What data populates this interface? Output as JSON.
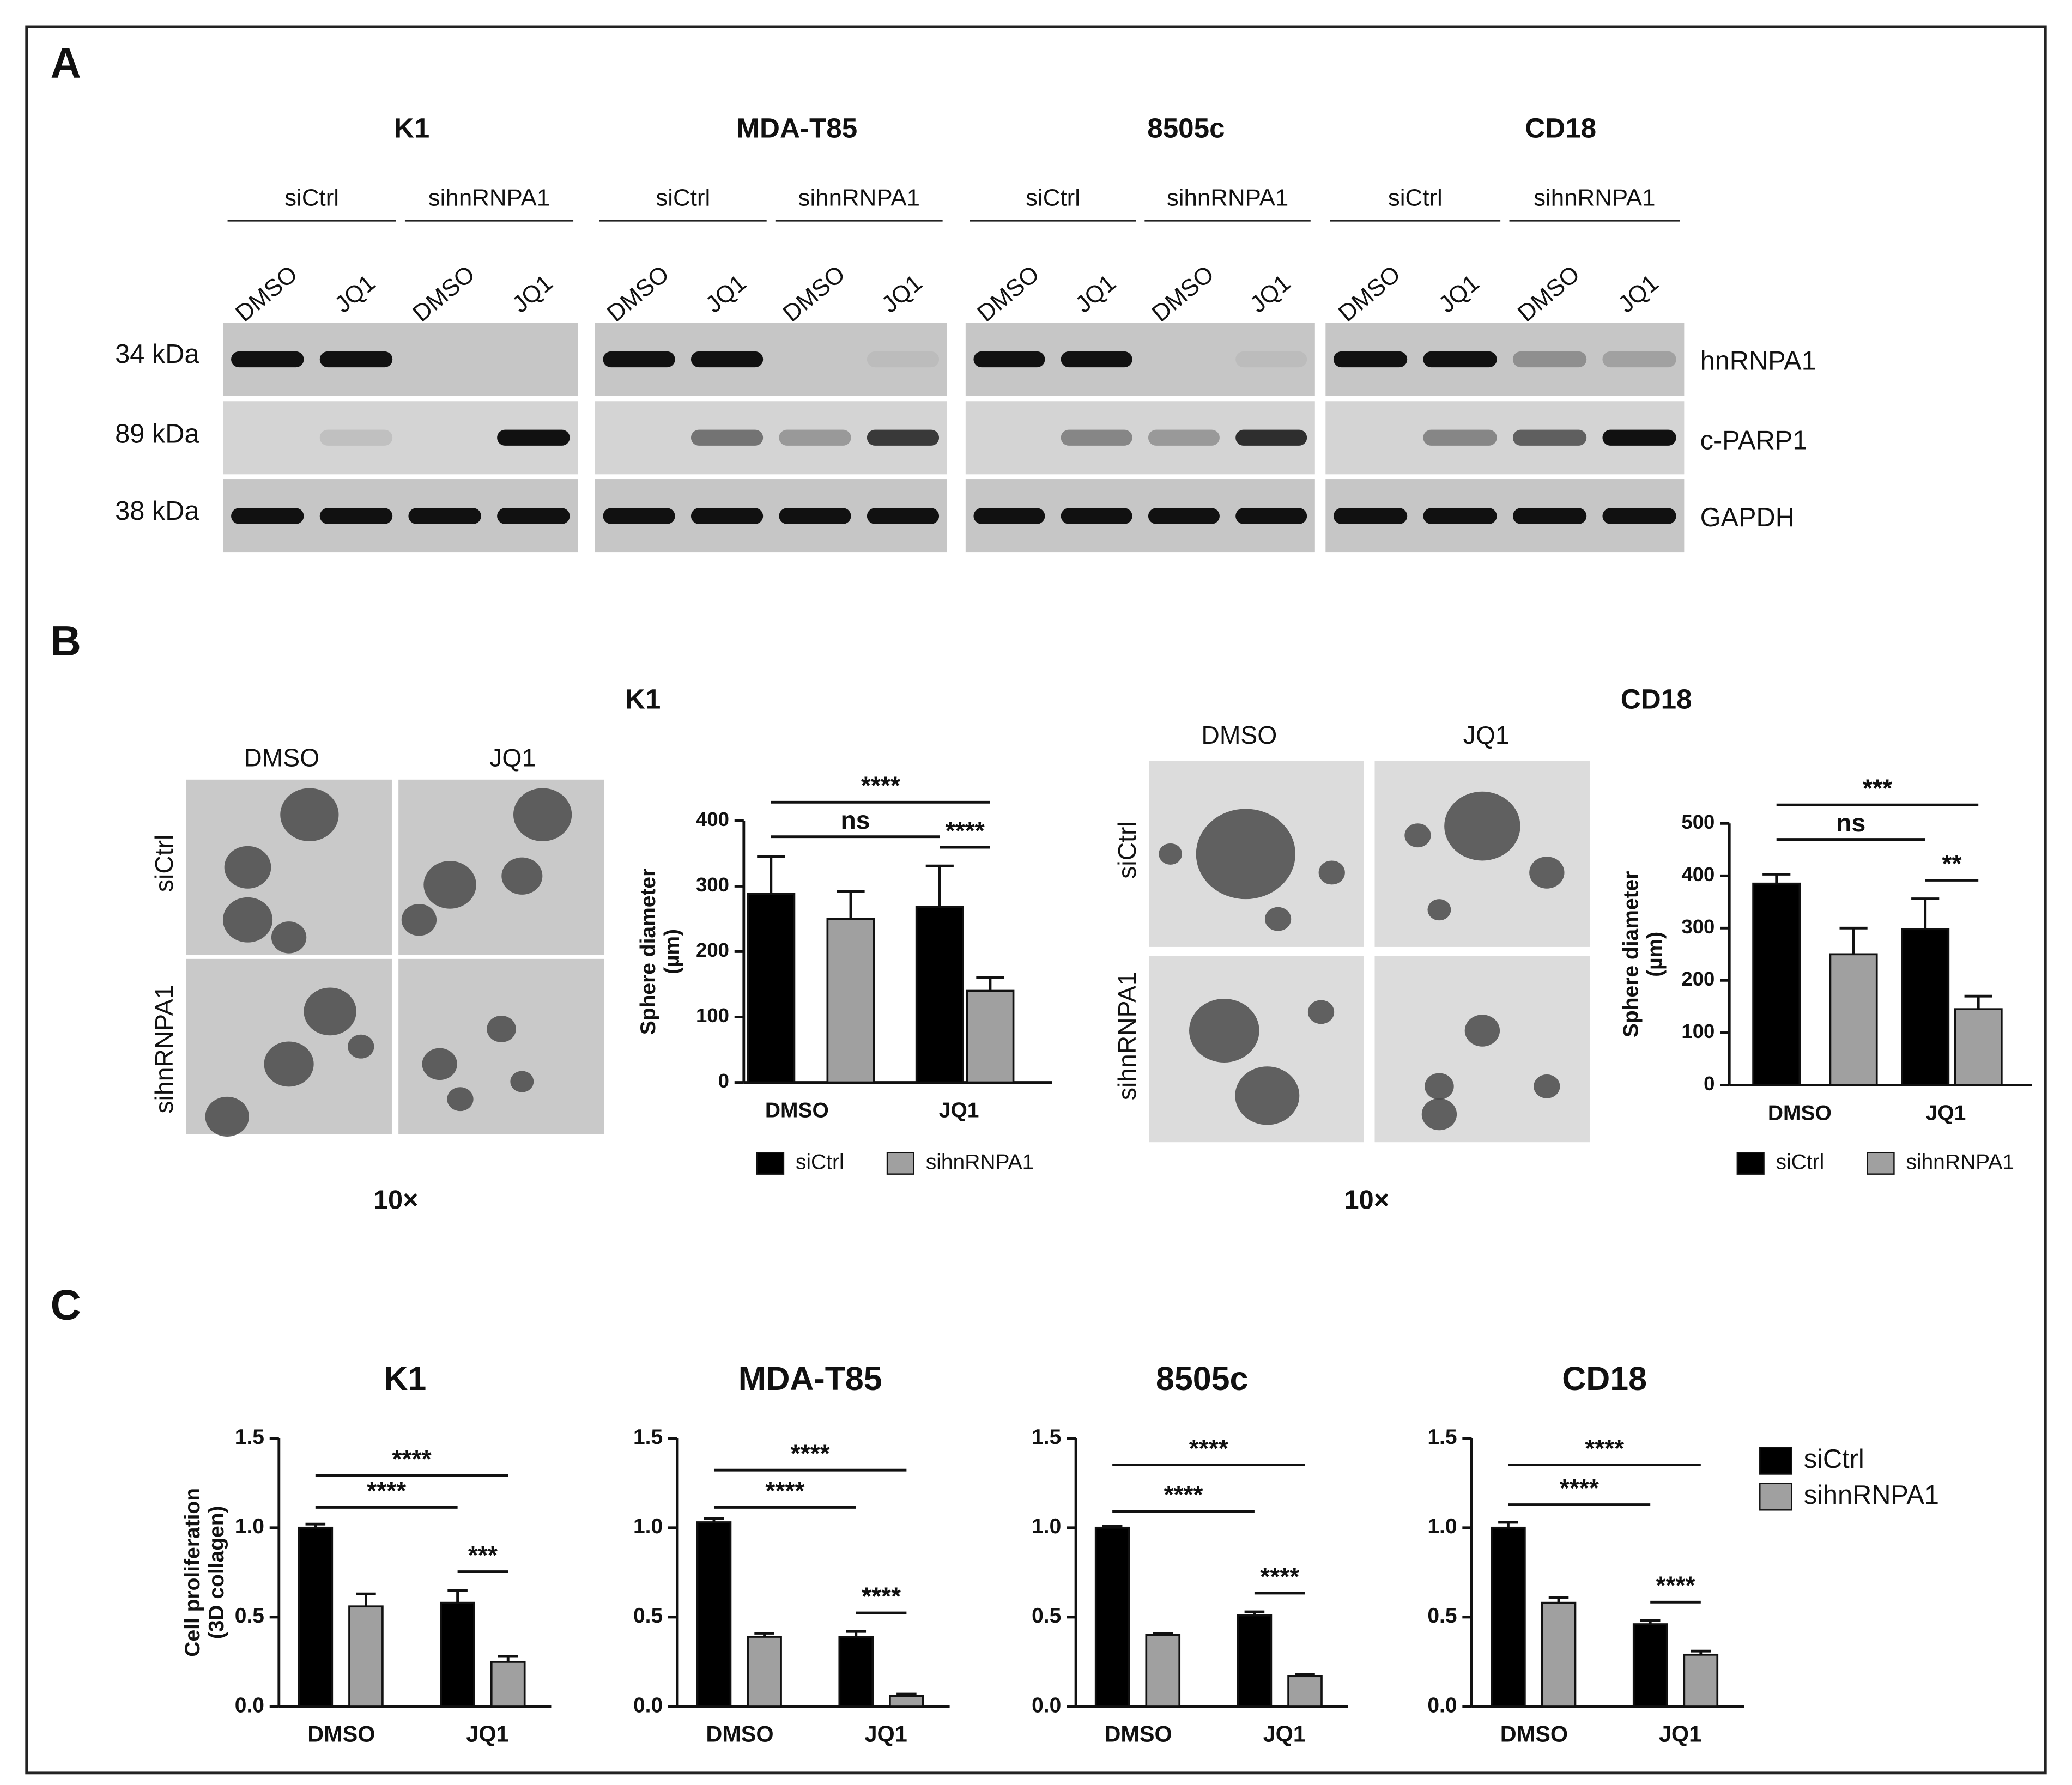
{
  "panel_labels": [
    "A",
    "B",
    "C"
  ],
  "western_blot": {
    "cell_lines": [
      "K1",
      "MDA-T85",
      "8505c",
      "CD18"
    ],
    "groups": [
      "siCtrl",
      "sihnRNPA1"
    ],
    "treatments": [
      "DMSO",
      "JQ1"
    ],
    "markers": [
      {
        "size": "34 kDa",
        "protein": "hnRNPA1"
      },
      {
        "size": "89 kDa",
        "protein": "c-PARP1"
      },
      {
        "size": "38 kDa",
        "protein": "GAPDH"
      }
    ]
  },
  "spheres": [
    {
      "treatments": [
        "DMSO",
        "JQ1"
      ],
      "groups": [
        "siCtrl",
        "sihnRNPA1"
      ],
      "magnification": "10×"
    },
    {
      "treatments": [
        "DMSO",
        "JQ1"
      ],
      "groups": [
        "siCtrl",
        "sihnRNPA1"
      ],
      "magnification": "10×"
    }
  ],
  "chart_data": [
    {
      "type": "bar",
      "title": "K1",
      "ylabel": [
        "Sphere diameter",
        "(µm)"
      ],
      "categories": [
        "DMSO",
        "JQ1"
      ],
      "series": [
        {
          "name": "siCtrl",
          "color": "#000000",
          "values": [
            288,
            268
          ],
          "errors": [
            57,
            63
          ]
        },
        {
          "name": "sihnRNPA1",
          "color": "#a0a0a0",
          "values": [
            250,
            140
          ],
          "errors": [
            42,
            20
          ]
        }
      ],
      "ylim": [
        0,
        400
      ],
      "yticks": [
        0,
        100,
        200,
        300,
        400
      ],
      "annotations": [
        "****",
        "ns",
        "****"
      ],
      "legend": "bottom"
    },
    {
      "type": "bar",
      "title": "CD18",
      "ylabel": [
        "Sphere diameter",
        "(µm)"
      ],
      "categories": [
        "DMSO",
        "JQ1"
      ],
      "series": [
        {
          "name": "siCtrl",
          "color": "#000000",
          "values": [
            385,
            298
          ],
          "errors": [
            18,
            58
          ]
        },
        {
          "name": "sihnRNPA1",
          "color": "#a0a0a0",
          "values": [
            250,
            145
          ],
          "errors": [
            50,
            25
          ]
        }
      ],
      "ylim": [
        0,
        500
      ],
      "yticks": [
        0,
        100,
        200,
        300,
        400,
        500
      ],
      "annotations": [
        "***",
        "ns",
        "**"
      ],
      "legend": "bottom"
    },
    {
      "type": "bar",
      "title": "K1",
      "ylabel": [
        "Cell proliferation",
        "(3D collagen)"
      ],
      "categories": [
        "DMSO",
        "JQ1"
      ],
      "series": [
        {
          "name": "siCtrl",
          "color": "#000000",
          "values": [
            1.0,
            0.58
          ],
          "errors": [
            0.02,
            0.07
          ]
        },
        {
          "name": "sihnRNPA1",
          "color": "#a0a0a0",
          "values": [
            0.56,
            0.25
          ],
          "errors": [
            0.07,
            0.03
          ]
        }
      ],
      "ylim": [
        0,
        1.5
      ],
      "yticks": [
        {
          "value": 0,
          "label": "0.0"
        },
        0.5,
        {
          "value": 1,
          "label": "1.0"
        },
        1.5
      ],
      "annotations": [
        "****",
        "****",
        "***"
      ],
      "legend": "right"
    },
    {
      "type": "bar",
      "title": "MDA-T85",
      "categories": [
        "DMSO",
        "JQ1"
      ],
      "series": [
        {
          "name": "siCtrl",
          "color": "#000000",
          "values": [
            1.03,
            0.39
          ],
          "errors": [
            0.02,
            0.03
          ]
        },
        {
          "name": "sihnRNPA1",
          "color": "#a0a0a0",
          "values": [
            0.39,
            0.06
          ],
          "errors": [
            0.02,
            0.01
          ]
        }
      ],
      "ylim": [
        0,
        1.5
      ],
      "yticks": [
        {
          "value": 0,
          "label": "0.0"
        },
        0.5,
        {
          "value": 1,
          "label": "1.0"
        },
        1.5
      ],
      "annotations": [
        "****",
        "****",
        "****"
      ]
    },
    {
      "type": "bar",
      "title": "8505c",
      "categories": [
        "DMSO",
        "JQ1"
      ],
      "series": [
        {
          "name": "siCtrl",
          "color": "#000000",
          "values": [
            1.0,
            0.51
          ],
          "errors": [
            0.01,
            0.02
          ]
        },
        {
          "name": "sihnRNPA1",
          "color": "#a0a0a0",
          "values": [
            0.4,
            0.17
          ],
          "errors": [
            0.01,
            0.01
          ]
        }
      ],
      "ylim": [
        0,
        1.5
      ],
      "yticks": [
        {
          "value": 0,
          "label": "0.0"
        },
        0.5,
        {
          "value": 1,
          "label": "1.0"
        },
        1.5
      ],
      "annotations": [
        "****",
        "****",
        "****"
      ]
    },
    {
      "type": "bar",
      "title": "CD18",
      "categories": [
        "DMSO",
        "JQ1"
      ],
      "series": [
        {
          "name": "siCtrl",
          "color": "#000000",
          "values": [
            1.0,
            0.46
          ],
          "errors": [
            0.03,
            0.02
          ]
        },
        {
          "name": "sihnRNPA1",
          "color": "#a0a0a0",
          "values": [
            0.58,
            0.29
          ],
          "errors": [
            0.03,
            0.02
          ]
        }
      ],
      "ylim": [
        0,
        1.5
      ],
      "yticks": [
        {
          "value": 0,
          "label": "0.0"
        },
        0.5,
        {
          "value": 1,
          "label": "1.0"
        },
        1.5
      ],
      "annotations": [
        "****",
        "****",
        "****"
      ]
    }
  ]
}
